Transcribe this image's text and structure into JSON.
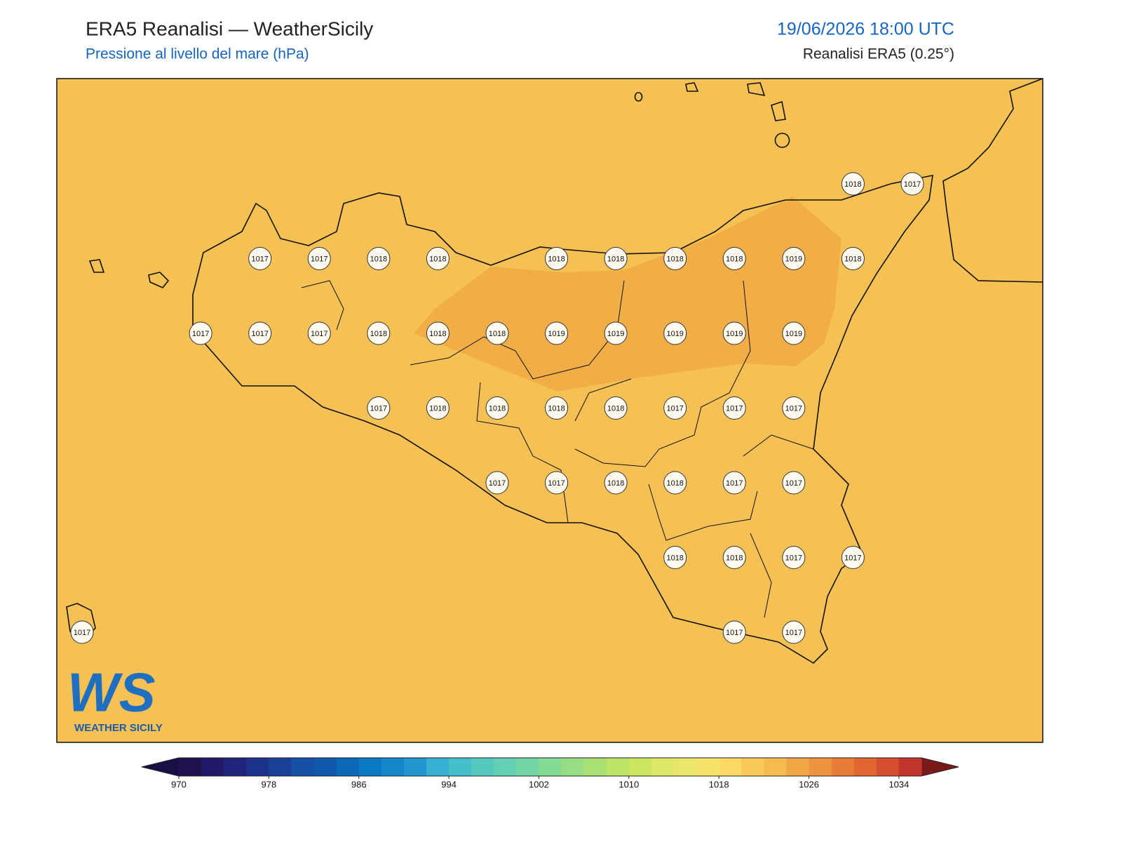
{
  "header": {
    "title": "ERA5 Reanalisi — WeatherSicily",
    "subtitle": "Pressione al livello del mare (hPa)",
    "datetime": "19/06/2026 18:00 UTC",
    "source": "Reanalisi ERA5 (0.25°)"
  },
  "map": {
    "fill_color": "#f5c155",
    "high_color": "#f1ad46",
    "stations": {
      "rows": [
        [
          null,
          null,
          null,
          null,
          null,
          null,
          null,
          null,
          null,
          null,
          null,
          null,
          null,
          1018,
          1017
        ],
        [
          null,
          null,
          null,
          1017,
          1017,
          1018,
          1018,
          null,
          1018,
          1018,
          1018,
          1018,
          1019,
          1018,
          null
        ],
        [
          null,
          null,
          1017,
          1017,
          1017,
          1018,
          1018,
          1018,
          1019,
          1019,
          1019,
          1019,
          1019,
          null,
          null
        ],
        [
          null,
          null,
          null,
          null,
          null,
          1017,
          1018,
          1018,
          1018,
          1018,
          1017,
          1017,
          1017,
          null,
          null
        ],
        [
          null,
          null,
          null,
          null,
          null,
          null,
          null,
          1017,
          1017,
          1018,
          1018,
          1017,
          1017,
          null,
          null
        ],
        [
          null,
          null,
          null,
          null,
          null,
          null,
          null,
          null,
          null,
          null,
          1018,
          1018,
          1017,
          1017,
          null
        ],
        [
          1017,
          null,
          null,
          null,
          null,
          null,
          null,
          null,
          null,
          null,
          null,
          1017,
          1017,
          null,
          null
        ]
      ]
    }
  },
  "logo": {
    "mark": "WS",
    "name": "WEATHER SICILY"
  },
  "colorbar": {
    "range": [
      970,
      1036
    ],
    "ticks": [
      970,
      978,
      986,
      994,
      1002,
      1010,
      1018,
      1026,
      1034
    ],
    "under_color": "#1a0f45",
    "over_color": "#7a1a1a",
    "colors": [
      "#20124f",
      "#221a66",
      "#20247a",
      "#1d3289",
      "#1a4096",
      "#164ea3",
      "#1159ad",
      "#0d68b8",
      "#0b78c3",
      "#1486c9",
      "#2397cd",
      "#35b0d2",
      "#45bfcb",
      "#55c8c0",
      "#64cfb3",
      "#73d5a4",
      "#84d993",
      "#97dd82",
      "#a9e073",
      "#bce466",
      "#cde662",
      "#dce767",
      "#eae66b",
      "#f6e26a",
      "#fcd865",
      "#f9ca5a",
      "#f6bb50",
      "#f2a747",
      "#ee933f",
      "#e97d38",
      "#e26532",
      "#d54e2e",
      "#c2352b"
    ]
  }
}
